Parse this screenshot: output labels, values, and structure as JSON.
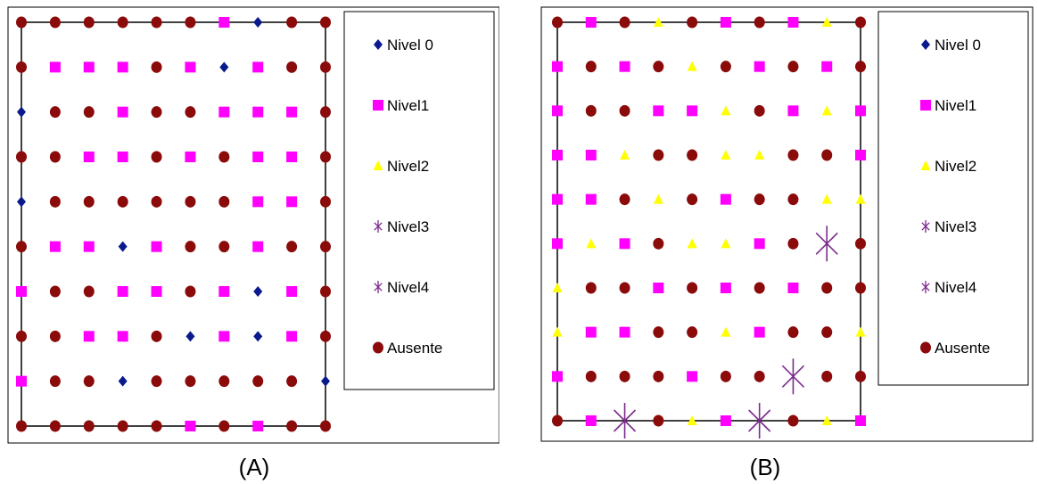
{
  "legend_labels": [
    "Nivel 0",
    "Nivel1",
    "Nivel2",
    "Nivel3",
    "Nivel4",
    "Ausente"
  ],
  "colors": {
    "nivel0": "#0a1a8c",
    "nivel1": "#ff00ff",
    "nivel2": "#ffff00",
    "nivel3": "#7b2a8c",
    "nivel4": "#7b2a8c",
    "ausente": "#8b0a0a"
  },
  "chart_data": [
    {
      "type": "scatter",
      "caption": "(A)",
      "legend": [
        "Nivel 0",
        "Nivel1",
        "Nivel2",
        "Nivel3",
        "Nivel4",
        "Ausente"
      ],
      "levels": [
        "nivel0",
        "nivel1",
        "nivel2",
        "nivel3",
        "nivel4",
        "ausente"
      ],
      "columns": 10,
      "rows": 10,
      "grid": [
        [
          5,
          5,
          5,
          5,
          5,
          5,
          1,
          0,
          5,
          5
        ],
        [
          5,
          1,
          1,
          1,
          5,
          1,
          0,
          1,
          5,
          5
        ],
        [
          0,
          5,
          5,
          1,
          5,
          5,
          1,
          1,
          1,
          5
        ],
        [
          5,
          5,
          1,
          1,
          5,
          1,
          5,
          1,
          1,
          5
        ],
        [
          0,
          5,
          5,
          5,
          5,
          5,
          5,
          1,
          1,
          5
        ],
        [
          5,
          1,
          1,
          0,
          1,
          5,
          5,
          1,
          5,
          5
        ],
        [
          1,
          5,
          5,
          1,
          1,
          5,
          1,
          0,
          1,
          5
        ],
        [
          5,
          5,
          1,
          1,
          5,
          0,
          1,
          0,
          1,
          5
        ],
        [
          1,
          5,
          5,
          0,
          5,
          5,
          5,
          5,
          5,
          0
        ],
        [
          5,
          5,
          5,
          5,
          5,
          1,
          5,
          1,
          5,
          5
        ]
      ]
    },
    {
      "type": "scatter",
      "caption": "(B)",
      "legend": [
        "Nivel 0",
        "Nivel1",
        "Nivel2",
        "Nivel3",
        "Nivel4",
        "Ausente"
      ],
      "levels": [
        "nivel0",
        "nivel1",
        "nivel2",
        "nivel3",
        "nivel4",
        "ausente"
      ],
      "columns": 10,
      "rows": 10,
      "grid": [
        [
          5,
          1,
          5,
          2,
          5,
          1,
          5,
          1,
          2,
          5
        ],
        [
          1,
          5,
          1,
          5,
          2,
          5,
          1,
          5,
          1,
          5
        ],
        [
          1,
          5,
          5,
          1,
          1,
          2,
          5,
          1,
          2,
          1
        ],
        [
          1,
          1,
          2,
          5,
          5,
          2,
          2,
          5,
          5,
          1
        ],
        [
          1,
          1,
          5,
          2,
          5,
          1,
          5,
          5,
          2,
          2
        ],
        [
          1,
          2,
          1,
          5,
          2,
          2,
          1,
          5,
          3,
          5
        ],
        [
          2,
          5,
          5,
          1,
          5,
          1,
          5,
          1,
          5,
          5
        ],
        [
          2,
          1,
          1,
          5,
          5,
          2,
          1,
          5,
          5,
          2
        ],
        [
          1,
          5,
          5,
          5,
          1,
          5,
          5,
          3,
          5,
          5
        ],
        [
          5,
          1,
          3,
          5,
          2,
          1,
          3,
          5,
          2,
          1
        ]
      ]
    }
  ]
}
